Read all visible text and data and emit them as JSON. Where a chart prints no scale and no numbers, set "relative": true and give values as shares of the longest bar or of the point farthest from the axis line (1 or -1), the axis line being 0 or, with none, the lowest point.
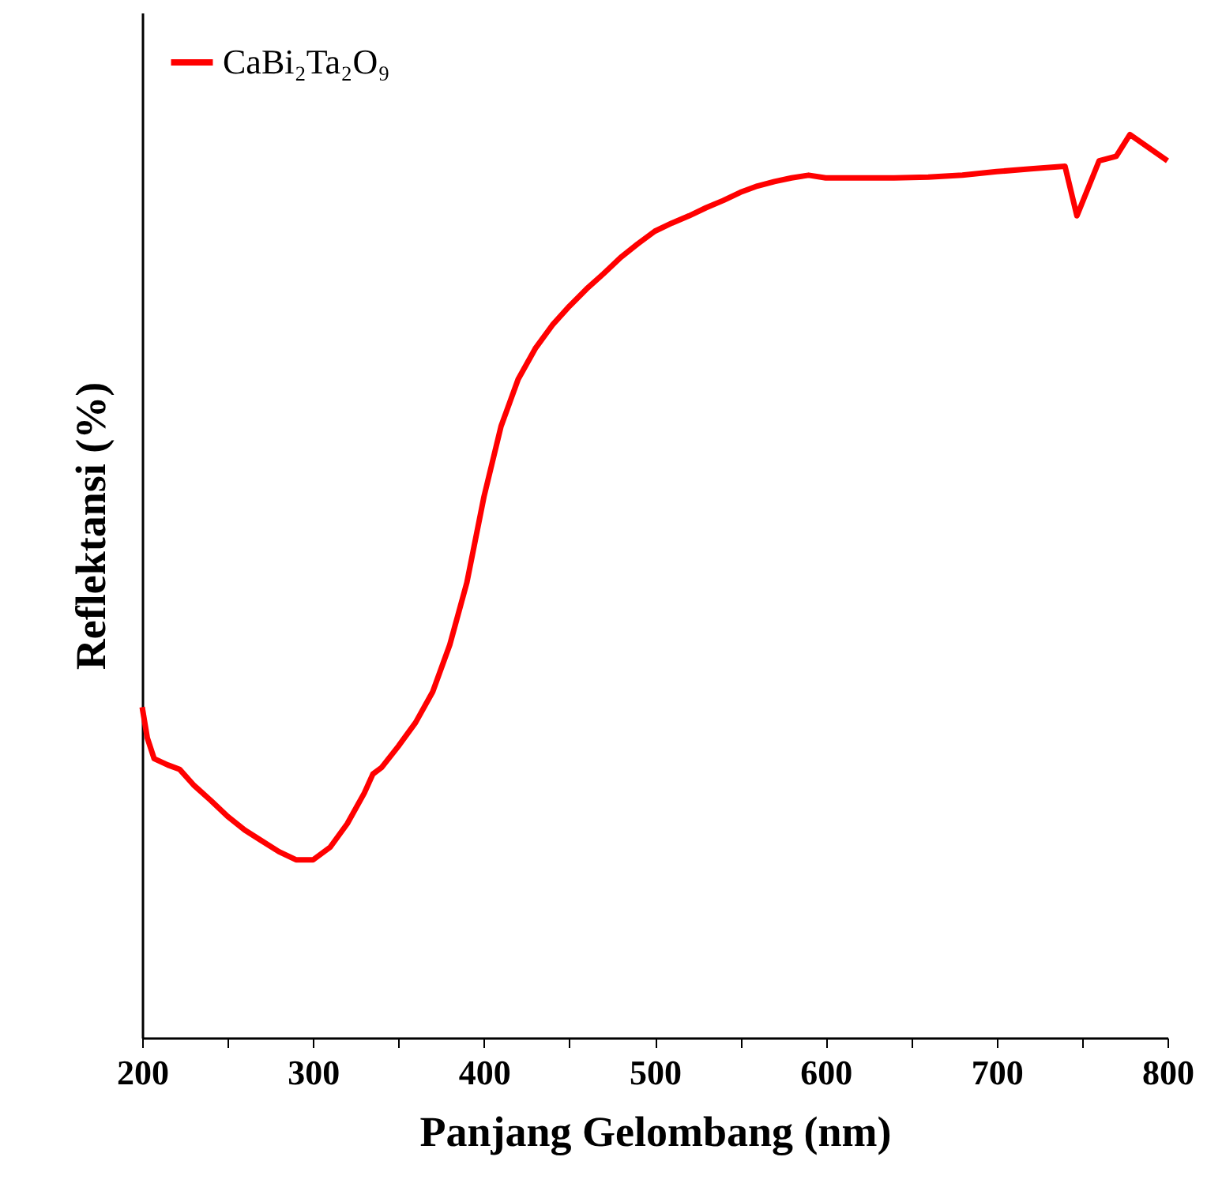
{
  "chart_data": {
    "type": "line",
    "xlabel": "Panjang Gelombang (nm)",
    "ylabel": "Reflektansi (%)",
    "relative": true,
    "legend": "top left",
    "xlim": [
      200,
      800
    ],
    "xticks": [
      200,
      {
        "value": 250,
        "label": null
      },
      300,
      {
        "value": 350,
        "label": null
      },
      400,
      {
        "value": 450,
        "label": null
      },
      500,
      {
        "value": 550,
        "label": null
      },
      600,
      {
        "value": 650,
        "label": null
      },
      700,
      {
        "value": 750,
        "label": null
      },
      800
    ],
    "x": [
      200,
      203,
      207,
      215,
      222,
      230,
      240,
      250,
      260,
      270,
      280,
      290,
      300,
      310,
      320,
      330,
      335,
      340,
      350,
      360,
      370,
      380,
      390,
      400,
      410,
      420,
      430,
      440,
      450,
      460,
      470,
      480,
      490,
      500,
      510,
      520,
      530,
      540,
      550,
      560,
      570,
      580,
      590,
      600,
      620,
      640,
      660,
      680,
      700,
      720,
      740,
      747,
      760,
      770,
      778,
      800
    ],
    "series": [
      {
        "name": "CaBi₂Ta₂O₉",
        "color": "#ff0000",
        "values": [
          0.366,
          0.332,
          0.309,
          0.302,
          0.297,
          0.28,
          0.263,
          0.245,
          0.23,
          0.218,
          0.206,
          0.197,
          0.197,
          0.211,
          0.237,
          0.271,
          0.292,
          0.299,
          0.323,
          0.349,
          0.383,
          0.435,
          0.504,
          0.599,
          0.677,
          0.729,
          0.763,
          0.789,
          0.81,
          0.829,
          0.846,
          0.864,
          0.879,
          0.893,
          0.902,
          0.91,
          0.919,
          0.927,
          0.936,
          0.943,
          0.948,
          0.952,
          0.955,
          0.952,
          0.952,
          0.952,
          0.953,
          0.955,
          0.959,
          0.962,
          0.965,
          0.91,
          0.971,
          0.976,
          1.0,
          0.971
        ]
      }
    ]
  }
}
